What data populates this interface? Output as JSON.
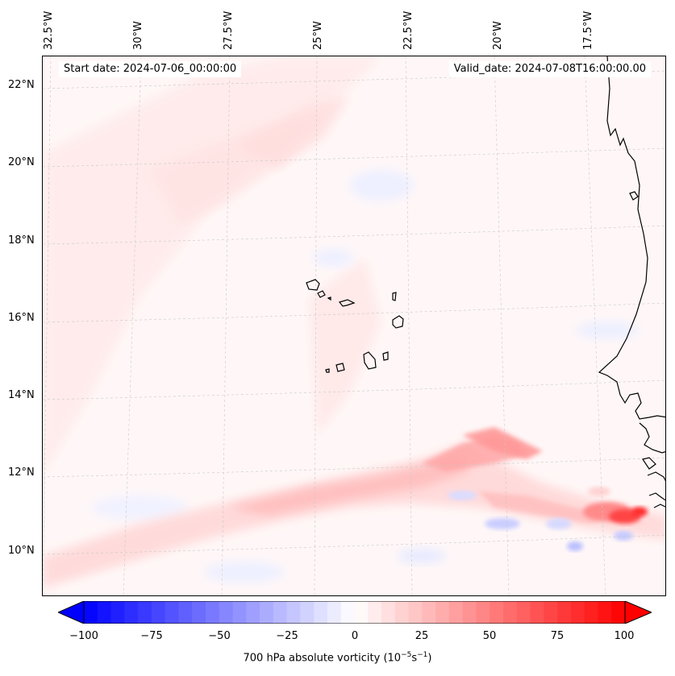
{
  "map": {
    "start_date": "Start date: 2024-07-06_00:00:00",
    "valid_date": "Valid_date: 2024-07-08T16:00:00.00",
    "lon_labels": [
      "32.5°W",
      "30°W",
      "27.5°W",
      "25°W",
      "22.5°W",
      "20°W",
      "17.5°W"
    ],
    "lat_labels": [
      "22°N",
      "20°N",
      "18°N",
      "16°N",
      "14°N",
      "12°N",
      "10°N"
    ]
  },
  "colorbar": {
    "label_prefix": "700 hPa absolute vorticity (10",
    "label_exp1": "−5",
    "label_mid": "s",
    "label_exp2": "−1",
    "label_suffix": ")",
    "ticks": [
      "−100",
      "−75",
      "−50",
      "−25",
      "0",
      "25",
      "50",
      "75",
      "100"
    ],
    "range": [
      -100,
      100
    ],
    "low_color": "#0000ff",
    "high_color": "#ff0000"
  }
}
